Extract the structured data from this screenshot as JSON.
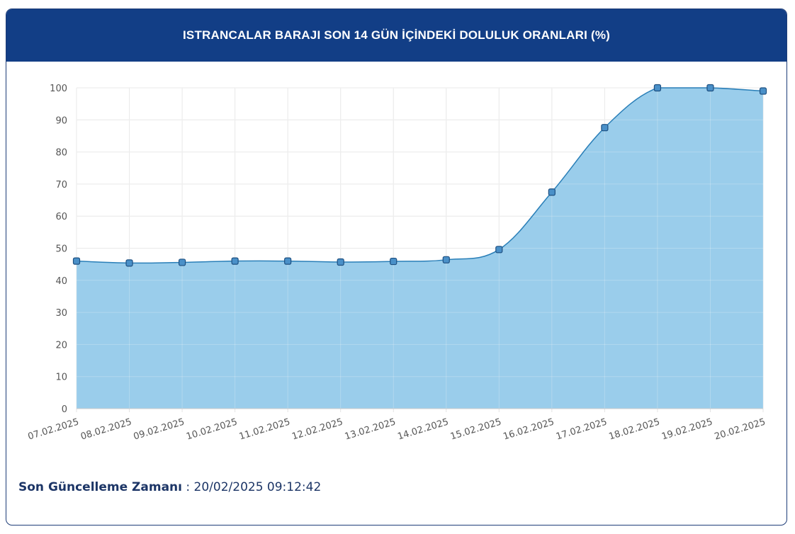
{
  "header": {
    "title": "ISTRANCALAR BARAJI SON 14 GÜN İÇİNDEKİ DOLULUK ORANLARI (%)"
  },
  "footer": {
    "label": "Son Güncelleme Zamanı",
    "separator": " : ",
    "value": "20/02/2025 09:12:42"
  },
  "colors": {
    "header_bg": "#123e86",
    "area_fill": "#8fc8e9",
    "line": "#2a7fb8",
    "marker": "#4a90c8",
    "marker_border": "#1d4f80"
  },
  "chart_data": {
    "type": "area",
    "x": [
      "07.02.2025",
      "08.02.2025",
      "09.02.2025",
      "10.02.2025",
      "11.02.2025",
      "12.02.2025",
      "13.02.2025",
      "14.02.2025",
      "15.02.2025",
      "16.02.2025",
      "17.02.2025",
      "18.02.2025",
      "19.02.2025",
      "20.02.2025"
    ],
    "values": [
      46.0,
      45.4,
      45.6,
      46.0,
      46.0,
      45.7,
      45.9,
      46.4,
      49.6,
      67.5,
      87.6,
      100.0,
      100.0,
      99.0
    ],
    "yticks": [
      0,
      10,
      20,
      30,
      40,
      50,
      60,
      70,
      80,
      90,
      100
    ],
    "ylim": [
      0,
      100
    ],
    "grid": true,
    "title": "ISTRANCALAR BARAJI SON 14 GÜN İÇİNDEKİ DOLULUK ORANLARI (%)"
  }
}
